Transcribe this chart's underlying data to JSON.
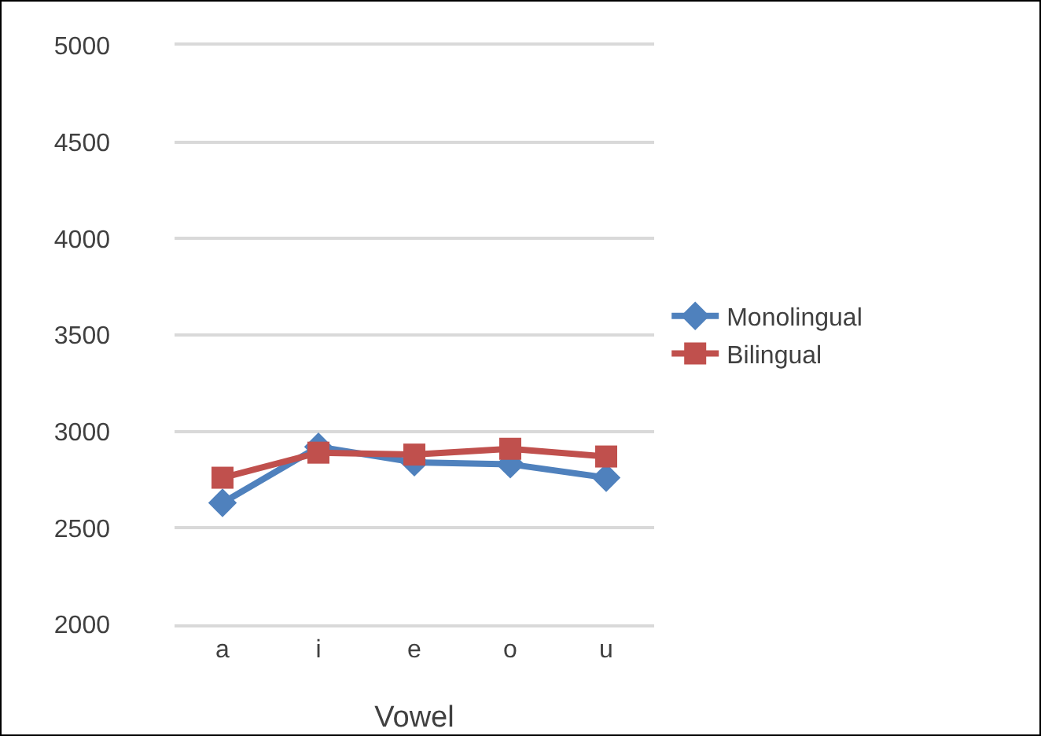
{
  "chart_data": {
    "type": "line",
    "xlabel": "Vowel",
    "categories": [
      "a",
      "i",
      "e",
      "o",
      "u"
    ],
    "series": [
      {
        "name": "Monolingual",
        "color": "#4f81bd",
        "marker": "diamond",
        "values": [
          2630,
          2920,
          2840,
          2830,
          2760
        ]
      },
      {
        "name": "Bilingual",
        "color": "#c0504d",
        "marker": "square",
        "values": [
          2760,
          2890,
          2880,
          2910,
          2870
        ]
      }
    ],
    "ylim": [
      2000,
      5000
    ],
    "yticks": [
      2000,
      2500,
      3000,
      3500,
      4000,
      4500,
      5000
    ],
    "grid": "y",
    "legend": "right"
  }
}
